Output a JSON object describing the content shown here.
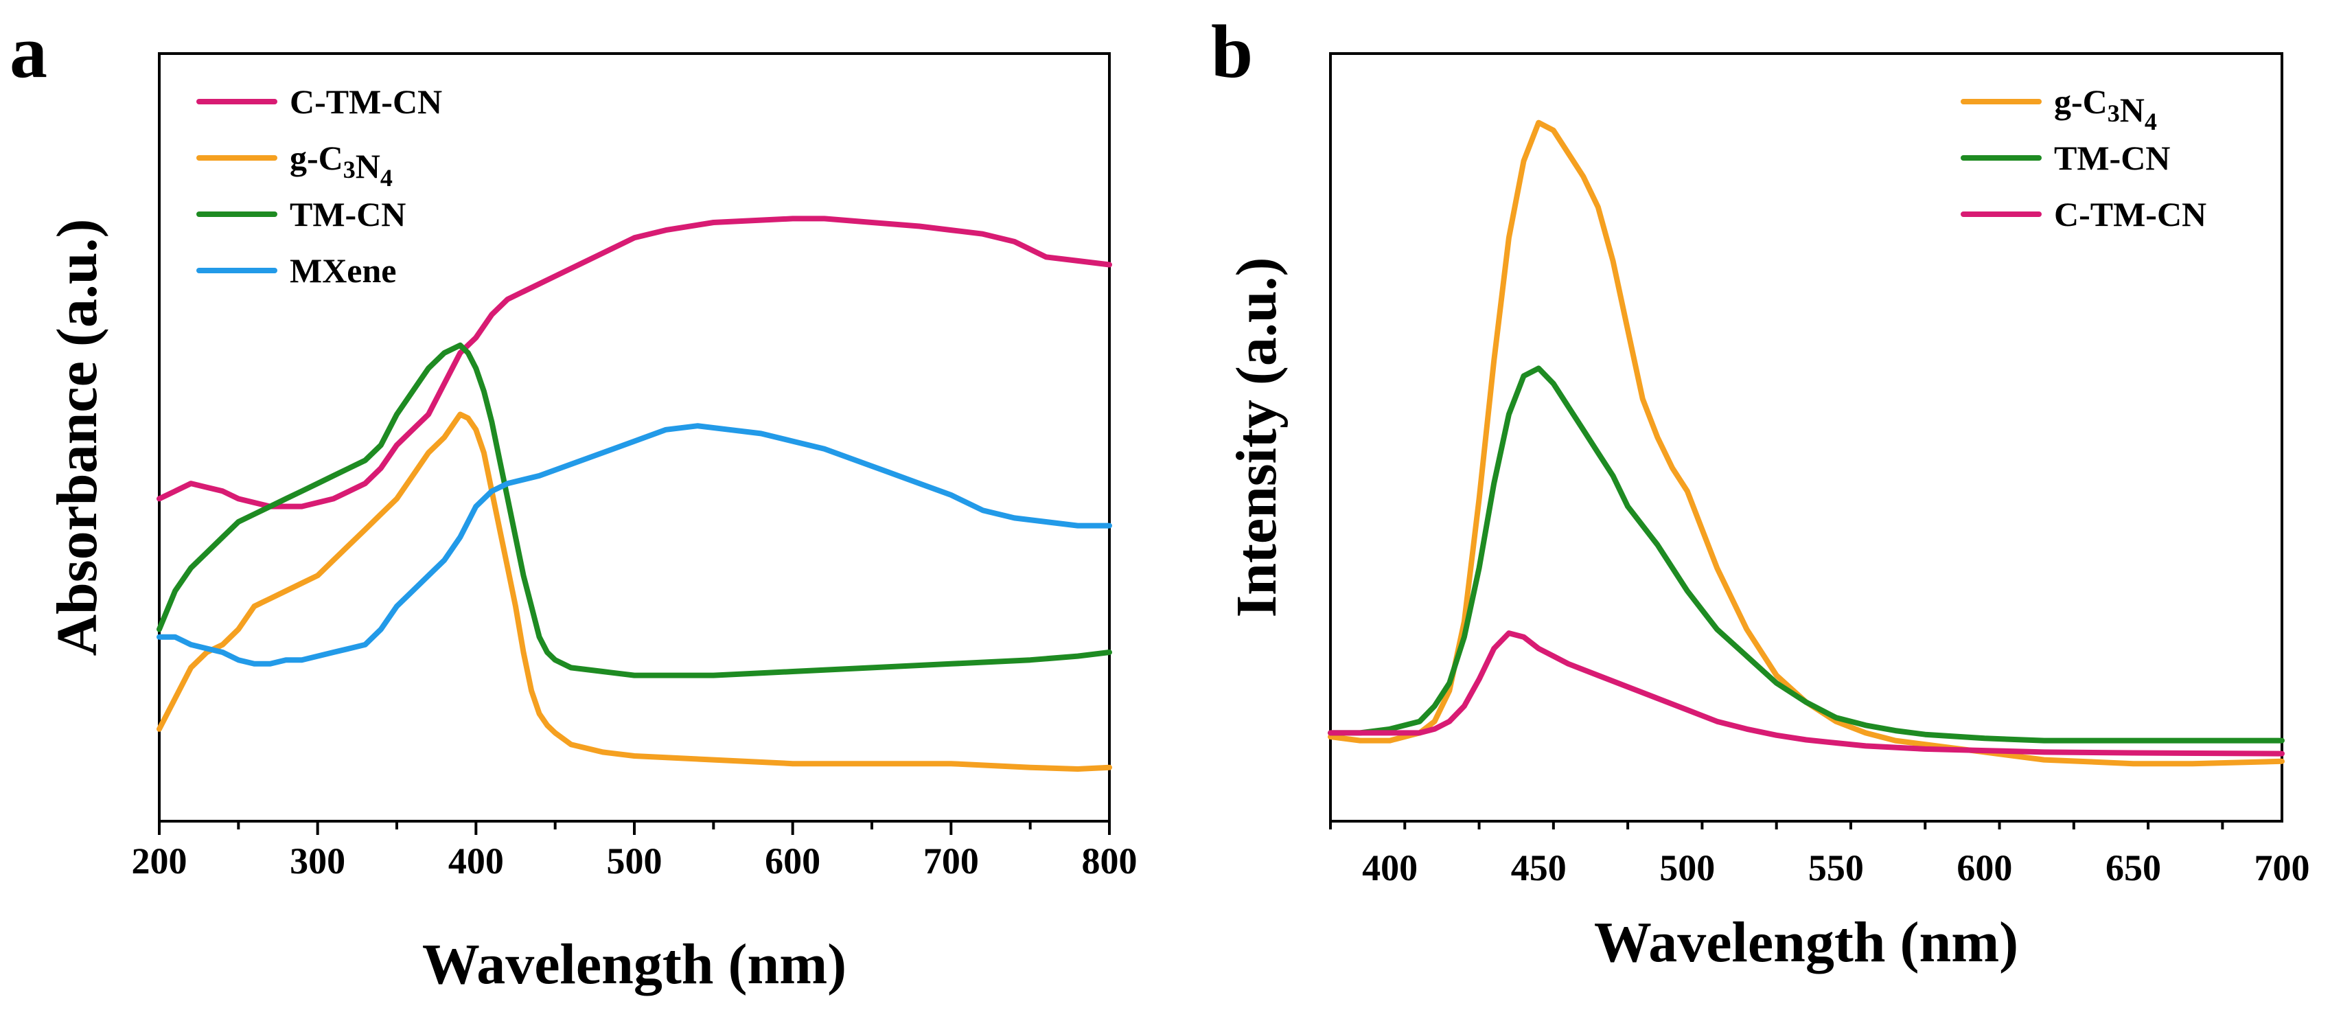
{
  "chart_data": [
    {
      "type": "line",
      "panel_label": "a",
      "xlabel": "Wavelength (nm)",
      "ylabel": "Absorbance (a.u.)",
      "xlim": [
        200,
        800
      ],
      "ylim": [
        0,
        100
      ],
      "y_ticks_labeled": false,
      "xticks": [
        200,
        300,
        400,
        500,
        600,
        700,
        800
      ],
      "xtick_labels": [
        "200",
        "300",
        "400",
        "500",
        "600",
        "700",
        "800"
      ],
      "legend_position": "top-left",
      "series": [
        {
          "name": "C-TM-CN",
          "label_parts": [
            {
              "t": "C-TM-CN"
            }
          ],
          "color": "#d81b73",
          "x": [
            200,
            210,
            220,
            230,
            240,
            250,
            260,
            270,
            280,
            290,
            300,
            310,
            320,
            330,
            340,
            350,
            360,
            370,
            380,
            390,
            395,
            400,
            410,
            420,
            430,
            450,
            480,
            500,
            520,
            550,
            600,
            620,
            650,
            680,
            700,
            720,
            740,
            760,
            780,
            800
          ],
          "y": [
            42,
            43,
            44,
            43.5,
            43,
            42,
            41.5,
            41,
            41,
            41,
            41.5,
            42,
            43,
            44,
            46,
            49,
            51,
            53,
            57,
            61,
            62,
            63,
            66,
            68,
            69,
            71,
            74,
            76,
            77,
            78,
            78.5,
            78.5,
            78,
            77.5,
            77,
            76.5,
            75.5,
            73.5,
            73,
            72.5
          ]
        },
        {
          "name": "g-C3N4",
          "label_parts": [
            {
              "t": "g-C"
            },
            {
              "t": "3",
              "sub": true
            },
            {
              "t": "N"
            },
            {
              "t": "4",
              "sub": true
            }
          ],
          "color": "#f5a020",
          "x": [
            200,
            210,
            220,
            230,
            240,
            250,
            260,
            270,
            280,
            290,
            300,
            310,
            320,
            330,
            340,
            350,
            360,
            370,
            380,
            390,
            395,
            400,
            405,
            410,
            415,
            420,
            425,
            430,
            435,
            440,
            445,
            450,
            460,
            480,
            500,
            550,
            600,
            650,
            700,
            750,
            780,
            800
          ],
          "y": [
            12,
            16,
            20,
            22,
            23,
            25,
            28,
            29,
            30,
            31,
            32,
            34,
            36,
            38,
            40,
            42,
            45,
            48,
            50,
            53,
            52.5,
            51,
            48,
            43,
            38,
            33,
            28,
            22,
            17,
            14,
            12.5,
            11.5,
            10,
            9,
            8.5,
            8,
            7.5,
            7.5,
            7.5,
            7,
            6.8,
            7
          ]
        },
        {
          "name": "TM-CN",
          "label_parts": [
            {
              "t": "TM-CN"
            }
          ],
          "color": "#1e8b22",
          "x": [
            200,
            210,
            220,
            230,
            240,
            250,
            260,
            270,
            280,
            290,
            300,
            310,
            320,
            330,
            340,
            350,
            360,
            370,
            380,
            390,
            395,
            400,
            405,
            410,
            415,
            420,
            425,
            430,
            435,
            440,
            445,
            450,
            460,
            480,
            500,
            550,
            600,
            650,
            700,
            750,
            780,
            800
          ],
          "y": [
            25,
            30,
            33,
            35,
            37,
            39,
            40,
            41,
            42,
            43,
            44,
            45,
            46,
            47,
            49,
            53,
            56,
            59,
            61,
            62,
            61,
            59,
            56,
            52,
            47,
            42,
            37,
            32,
            28,
            24,
            22,
            21,
            20,
            19.5,
            19,
            19,
            19.5,
            20,
            20.5,
            21,
            21.5,
            22
          ]
        },
        {
          "name": "MXene",
          "label_parts": [
            {
              "t": "MXene"
            }
          ],
          "color": "#229ae8",
          "x": [
            200,
            210,
            220,
            230,
            240,
            250,
            260,
            270,
            280,
            290,
            300,
            310,
            320,
            330,
            340,
            350,
            360,
            370,
            380,
            390,
            400,
            410,
            420,
            440,
            460,
            480,
            500,
            520,
            540,
            560,
            580,
            600,
            620,
            640,
            660,
            680,
            700,
            720,
            740,
            760,
            780,
            800
          ],
          "y": [
            24,
            24,
            23,
            22.5,
            22,
            21,
            20.5,
            20.5,
            21,
            21,
            21.5,
            22,
            22.5,
            23,
            25,
            28,
            30,
            32,
            34,
            37,
            41,
            43,
            44,
            45,
            46.5,
            48,
            49.5,
            51,
            51.5,
            51,
            50.5,
            49.5,
            48.5,
            47,
            45.5,
            44,
            42.5,
            40.5,
            39.5,
            39,
            38.5,
            38.5
          ]
        }
      ]
    },
    {
      "type": "line",
      "panel_label": "b",
      "xlabel": "Wavelength (nm)",
      "ylabel": "Intensity (a.u.)",
      "xlim": [
        380,
        700
      ],
      "ylim": [
        0,
        100
      ],
      "y_ticks_labeled": false,
      "xticks": [
        400,
        450,
        500,
        550,
        600,
        650,
        700
      ],
      "xtick_labels": [
        "400",
        "450",
        "500",
        "550",
        "600",
        "650",
        "700"
      ],
      "legend_position": "top-right",
      "series": [
        {
          "name": "g-C3N4",
          "label_parts": [
            {
              "t": "g-C"
            },
            {
              "t": "3",
              "sub": true
            },
            {
              "t": "N"
            },
            {
              "t": "4",
              "sub": true
            }
          ],
          "color": "#f5a020",
          "x": [
            380,
            390,
            400,
            410,
            415,
            420,
            425,
            430,
            435,
            440,
            445,
            450,
            455,
            460,
            465,
            470,
            475,
            480,
            485,
            490,
            495,
            500,
            505,
            510,
            520,
            530,
            540,
            550,
            560,
            570,
            580,
            600,
            620,
            650,
            670,
            700
          ],
          "y": [
            11,
            10.5,
            10.5,
            11.5,
            13,
            17,
            26,
            42,
            60,
            76,
            86,
            91,
            90,
            87,
            84,
            80,
            73,
            64,
            55,
            50,
            46,
            43,
            38,
            33,
            25,
            19,
            15.5,
            13,
            11.5,
            10.5,
            10,
            9,
            8,
            7.5,
            7.5,
            7.8
          ]
        },
        {
          "name": "TM-CN",
          "label_parts": [
            {
              "t": "TM-CN"
            }
          ],
          "color": "#1e8b22",
          "x": [
            380,
            390,
            400,
            410,
            415,
            420,
            425,
            430,
            435,
            440,
            445,
            450,
            455,
            460,
            465,
            470,
            475,
            480,
            490,
            500,
            510,
            520,
            530,
            540,
            550,
            560,
            570,
            580,
            600,
            620,
            650,
            700
          ],
          "y": [
            11.5,
            11.5,
            12,
            13,
            15,
            18,
            24,
            33,
            44,
            53,
            58,
            59,
            57,
            54,
            51,
            48,
            45,
            41,
            36,
            30,
            25,
            21.5,
            18,
            15.5,
            13.5,
            12.5,
            11.8,
            11.3,
            10.8,
            10.5,
            10.5,
            10.5
          ]
        },
        {
          "name": "C-TM-CN",
          "label_parts": [
            {
              "t": "C-TM-CN"
            }
          ],
          "color": "#d81b73",
          "x": [
            380,
            390,
            400,
            410,
            415,
            420,
            425,
            430,
            435,
            440,
            445,
            450,
            455,
            460,
            470,
            480,
            490,
            500,
            510,
            520,
            530,
            540,
            550,
            560,
            580,
            600,
            620,
            650,
            700
          ],
          "y": [
            11.5,
            11.5,
            11.5,
            11.5,
            12,
            13,
            15,
            18.5,
            22.5,
            24.5,
            24,
            22.5,
            21.5,
            20.5,
            19,
            17.5,
            16,
            14.5,
            13,
            12,
            11.2,
            10.6,
            10.2,
            9.8,
            9.4,
            9.2,
            9,
            8.9,
            8.8
          ]
        }
      ]
    }
  ]
}
